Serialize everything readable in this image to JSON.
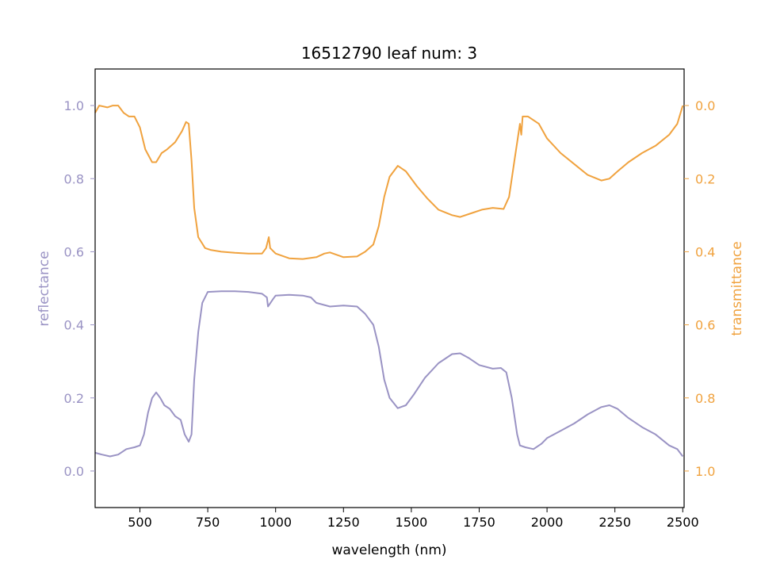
{
  "chart_data": {
    "type": "line",
    "title": "16512790 leaf num: 3",
    "xlabel": "wavelength (nm)",
    "ylabel_left": "reflectance",
    "ylabel_right": "transmittance",
    "xlim": [
      335,
      2505
    ],
    "ylim_left": [
      -0.1,
      1.1
    ],
    "ylim_right_inverted": [
      1.1,
      -0.1
    ],
    "x_ticks": [
      500,
      750,
      1000,
      1250,
      1500,
      1750,
      2000,
      2250,
      2500
    ],
    "x_tick_labels": [
      "500",
      "750",
      "1000",
      "1250",
      "1500",
      "1750",
      "2000",
      "2250",
      "2500"
    ],
    "y_left_ticks": [
      0.0,
      0.2,
      0.4,
      0.6,
      0.8,
      1.0
    ],
    "y_left_tick_labels": [
      "0.0",
      "0.2",
      "0.4",
      "0.6",
      "0.8",
      "1.0"
    ],
    "y_right_ticks": [
      0.0,
      0.2,
      0.4,
      0.6,
      0.8,
      1.0
    ],
    "y_right_tick_labels": [
      "0.0",
      "0.2",
      "0.4",
      "0.6",
      "0.8",
      "1.0"
    ],
    "grid": false,
    "legend": "none",
    "colors": {
      "reflectance": "#9a93c4",
      "transmittance": "#f0a23e"
    },
    "series": [
      {
        "key": "reflectance",
        "axis": "left",
        "points": [
          [
            335,
            0.05
          ],
          [
            360,
            0.045
          ],
          [
            390,
            0.04
          ],
          [
            420,
            0.045
          ],
          [
            450,
            0.06
          ],
          [
            480,
            0.065
          ],
          [
            500,
            0.07
          ],
          [
            515,
            0.1
          ],
          [
            530,
            0.16
          ],
          [
            545,
            0.2
          ],
          [
            560,
            0.215
          ],
          [
            575,
            0.2
          ],
          [
            590,
            0.18
          ],
          [
            610,
            0.17
          ],
          [
            630,
            0.15
          ],
          [
            650,
            0.14
          ],
          [
            665,
            0.1
          ],
          [
            680,
            0.08
          ],
          [
            690,
            0.1
          ],
          [
            700,
            0.25
          ],
          [
            715,
            0.38
          ],
          [
            730,
            0.46
          ],
          [
            750,
            0.49
          ],
          [
            800,
            0.492
          ],
          [
            850,
            0.492
          ],
          [
            900,
            0.49
          ],
          [
            950,
            0.485
          ],
          [
            968,
            0.475
          ],
          [
            972,
            0.45
          ],
          [
            990,
            0.47
          ],
          [
            1000,
            0.48
          ],
          [
            1050,
            0.482
          ],
          [
            1100,
            0.48
          ],
          [
            1130,
            0.475
          ],
          [
            1150,
            0.46
          ],
          [
            1200,
            0.45
          ],
          [
            1250,
            0.453
          ],
          [
            1300,
            0.45
          ],
          [
            1330,
            0.43
          ],
          [
            1360,
            0.4
          ],
          [
            1380,
            0.34
          ],
          [
            1400,
            0.25
          ],
          [
            1420,
            0.2
          ],
          [
            1450,
            0.172
          ],
          [
            1480,
            0.18
          ],
          [
            1510,
            0.21
          ],
          [
            1550,
            0.255
          ],
          [
            1600,
            0.295
          ],
          [
            1650,
            0.32
          ],
          [
            1680,
            0.322
          ],
          [
            1710,
            0.31
          ],
          [
            1750,
            0.29
          ],
          [
            1800,
            0.28
          ],
          [
            1830,
            0.282
          ],
          [
            1850,
            0.27
          ],
          [
            1870,
            0.2
          ],
          [
            1890,
            0.1
          ],
          [
            1900,
            0.07
          ],
          [
            1920,
            0.065
          ],
          [
            1950,
            0.06
          ],
          [
            1980,
            0.075
          ],
          [
            2000,
            0.09
          ],
          [
            2050,
            0.11
          ],
          [
            2100,
            0.13
          ],
          [
            2150,
            0.155
          ],
          [
            2200,
            0.175
          ],
          [
            2230,
            0.18
          ],
          [
            2260,
            0.17
          ],
          [
            2300,
            0.145
          ],
          [
            2350,
            0.12
          ],
          [
            2400,
            0.1
          ],
          [
            2450,
            0.07
          ],
          [
            2480,
            0.06
          ],
          [
            2500,
            0.04
          ]
        ]
      },
      {
        "key": "transmittance",
        "axis": "right",
        "points": [
          [
            335,
            0.02
          ],
          [
            350,
            0.0
          ],
          [
            380,
            0.005
          ],
          [
            400,
            0.0
          ],
          [
            420,
            0.0
          ],
          [
            440,
            0.02
          ],
          [
            460,
            0.03
          ],
          [
            480,
            0.03
          ],
          [
            500,
            0.06
          ],
          [
            520,
            0.12
          ],
          [
            545,
            0.155
          ],
          [
            560,
            0.155
          ],
          [
            580,
            0.13
          ],
          [
            600,
            0.12
          ],
          [
            630,
            0.1
          ],
          [
            655,
            0.07
          ],
          [
            670,
            0.045
          ],
          [
            680,
            0.05
          ],
          [
            690,
            0.15
          ],
          [
            700,
            0.28
          ],
          [
            715,
            0.36
          ],
          [
            740,
            0.39
          ],
          [
            760,
            0.395
          ],
          [
            800,
            0.4
          ],
          [
            850,
            0.403
          ],
          [
            900,
            0.405
          ],
          [
            950,
            0.405
          ],
          [
            965,
            0.39
          ],
          [
            975,
            0.36
          ],
          [
            980,
            0.39
          ],
          [
            1000,
            0.405
          ],
          [
            1050,
            0.418
          ],
          [
            1100,
            0.42
          ],
          [
            1150,
            0.415
          ],
          [
            1180,
            0.405
          ],
          [
            1200,
            0.402
          ],
          [
            1250,
            0.415
          ],
          [
            1300,
            0.413
          ],
          [
            1330,
            0.4
          ],
          [
            1360,
            0.38
          ],
          [
            1380,
            0.33
          ],
          [
            1400,
            0.25
          ],
          [
            1420,
            0.195
          ],
          [
            1450,
            0.165
          ],
          [
            1480,
            0.18
          ],
          [
            1520,
            0.22
          ],
          [
            1560,
            0.255
          ],
          [
            1600,
            0.285
          ],
          [
            1650,
            0.3
          ],
          [
            1680,
            0.305
          ],
          [
            1720,
            0.295
          ],
          [
            1760,
            0.285
          ],
          [
            1800,
            0.28
          ],
          [
            1840,
            0.283
          ],
          [
            1860,
            0.25
          ],
          [
            1880,
            0.15
          ],
          [
            1900,
            0.05
          ],
          [
            1905,
            0.08
          ],
          [
            1910,
            0.03
          ],
          [
            1930,
            0.03
          ],
          [
            1970,
            0.05
          ],
          [
            2000,
            0.09
          ],
          [
            2050,
            0.13
          ],
          [
            2100,
            0.16
          ],
          [
            2150,
            0.19
          ],
          [
            2200,
            0.205
          ],
          [
            2230,
            0.2
          ],
          [
            2260,
            0.18
          ],
          [
            2300,
            0.155
          ],
          [
            2350,
            0.13
          ],
          [
            2400,
            0.11
          ],
          [
            2450,
            0.08
          ],
          [
            2480,
            0.05
          ],
          [
            2500,
            0.0
          ]
        ]
      }
    ]
  }
}
